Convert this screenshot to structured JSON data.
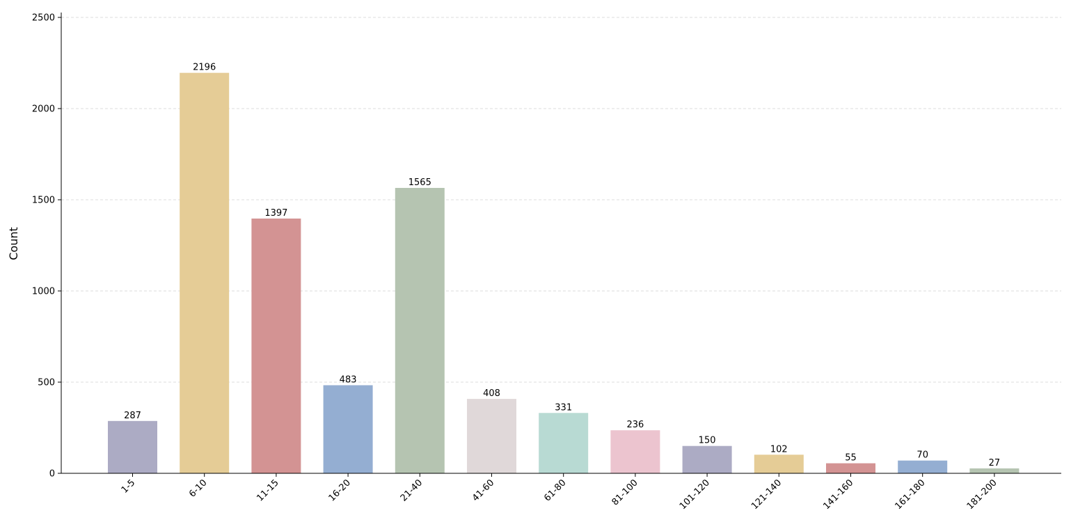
{
  "chart_data": {
    "type": "bar",
    "title": "",
    "xlabel": "",
    "ylabel": "Count",
    "ylim": [
      0,
      2500
    ],
    "yticks": [
      0,
      500,
      1000,
      1500,
      2000,
      2500
    ],
    "grid": "y-dashed",
    "categories": [
      "1-5",
      "6-10",
      "11-15",
      "16-20",
      "21-40",
      "41-60",
      "61-80",
      "81-100",
      "101-120",
      "121-140",
      "141-160",
      "161-180",
      "181-200"
    ],
    "values": [
      287,
      2196,
      1397,
      483,
      1565,
      408,
      331,
      236,
      150,
      102,
      55,
      70,
      27
    ],
    "colors": [
      "#acabc4",
      "#e5cc96",
      "#d39393",
      "#94aed2",
      "#b5c4b1",
      "#e0d8d9",
      "#b8dad3",
      "#ecc4cf",
      "#acabc4",
      "#e5cc96",
      "#d39393",
      "#94aed2",
      "#b5c4b1"
    ]
  }
}
